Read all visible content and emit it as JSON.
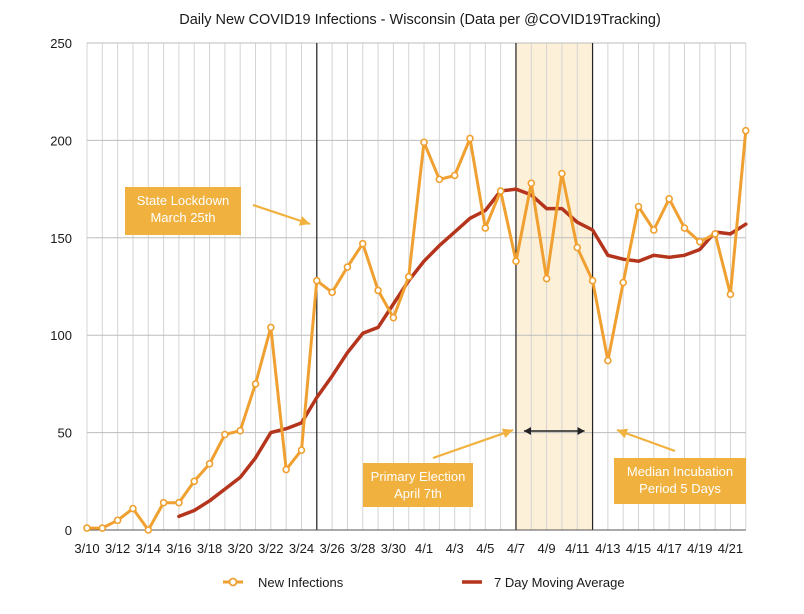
{
  "chart_data": {
    "type": "line",
    "title": "Daily New COVID19 Infections - Wisconsin (Data per @COVID19Tracking)",
    "xlabel": "",
    "ylabel": "",
    "ylim": [
      0,
      250
    ],
    "yticks": [
      0,
      50,
      100,
      150,
      200,
      250
    ],
    "grid": true,
    "legend_position": "bottom",
    "x_dates": [
      "3/10",
      "3/11",
      "3/12",
      "3/13",
      "3/14",
      "3/15",
      "3/16",
      "3/17",
      "3/18",
      "3/19",
      "3/20",
      "3/21",
      "3/22",
      "3/23",
      "3/24",
      "3/25",
      "3/26",
      "3/27",
      "3/28",
      "3/29",
      "3/30",
      "3/31",
      "4/1",
      "4/2",
      "4/3",
      "4/4",
      "4/5",
      "4/6",
      "4/7",
      "4/8",
      "4/9",
      "4/10",
      "4/11",
      "4/12",
      "4/13",
      "4/14",
      "4/15",
      "4/16",
      "4/17",
      "4/18",
      "4/19",
      "4/20",
      "4/21",
      "4/22"
    ],
    "x_tick_labels": [
      "3/10",
      "3/12",
      "3/14",
      "3/16",
      "3/18",
      "3/20",
      "3/22",
      "3/24",
      "3/26",
      "3/28",
      "3/30",
      "4/1",
      "4/3",
      "4/5",
      "4/7",
      "4/9",
      "4/11",
      "4/13",
      "4/15",
      "4/17",
      "4/19",
      "4/21"
    ],
    "series": [
      {
        "name": "New Infections",
        "color": "#f0a030",
        "marker": "circle",
        "values": [
          1,
          1,
          5,
          11,
          0,
          14,
          14,
          25,
          34,
          49,
          51,
          75,
          104,
          31,
          41,
          128,
          122,
          135,
          147,
          123,
          109,
          130,
          199,
          180,
          182,
          201,
          155,
          174,
          138,
          178,
          129,
          183,
          145,
          128,
          87,
          127,
          166,
          154,
          170,
          155,
          148,
          152,
          121,
          205
        ]
      },
      {
        "name": "7 Day Moving Average",
        "color": "#b5341c",
        "marker": "none",
        "values": [
          null,
          null,
          null,
          null,
          null,
          null,
          7,
          10,
          15,
          21,
          27,
          37,
          50,
          52,
          55,
          68,
          79,
          91,
          101,
          104,
          116,
          128,
          138,
          146,
          153,
          160,
          164,
          174,
          175,
          172,
          165,
          165,
          158,
          154,
          141,
          139,
          138,
          141,
          140,
          141,
          144,
          153,
          152,
          157
        ]
      }
    ],
    "vertical_lines": [
      {
        "x": "3/25",
        "color": "#222222"
      },
      {
        "x": "4/7",
        "color": "#222222"
      },
      {
        "x": "4/12",
        "color": "#222222"
      }
    ],
    "shaded_range": {
      "from": "4/7",
      "to": "4/12",
      "color": "#fdf0d8"
    },
    "annotations": [
      {
        "text": [
          "State Lockdown",
          "March 25th"
        ],
        "box_color": "#f0b13e"
      },
      {
        "text": [
          "Primary Election",
          "April 7th"
        ],
        "box_color": "#f0b13e"
      },
      {
        "text": [
          "Median Incubation",
          "Period 5 Days"
        ],
        "box_color": "#f0b13e"
      }
    ]
  }
}
